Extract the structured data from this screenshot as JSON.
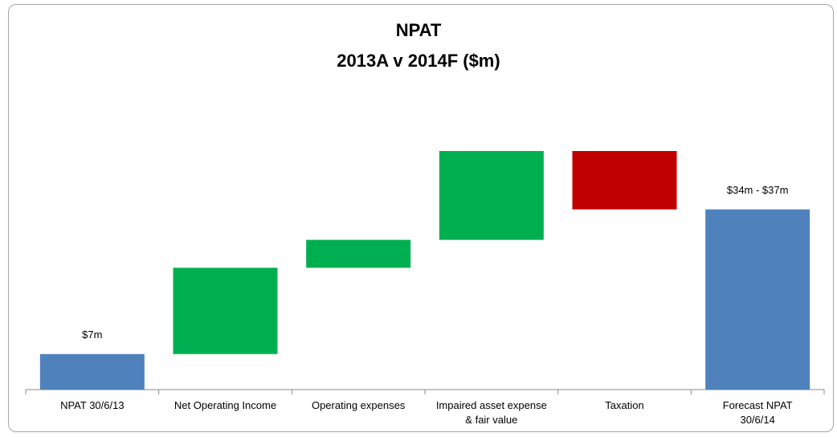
{
  "chart_data": {
    "type": "waterfall",
    "title": "NPAT",
    "subtitle": "2013A v 2014F ($m)",
    "categories": [
      "NPAT 30/6/13",
      "Net Operating Income",
      "Operating expenses",
      "Impaired asset expense\n& fair value",
      "Taxation",
      "Forecast NPAT\n30/6/14"
    ],
    "values": [
      7,
      17,
      5.5,
      17.5,
      -11.5,
      35.5
    ],
    "value_labels": [
      "$7m",
      null,
      null,
      null,
      null,
      "$34m - $37m"
    ],
    "is_total": [
      true,
      false,
      false,
      false,
      false,
      true
    ],
    "total_color": "#4f81bd",
    "increase_color": "#00b050",
    "decrease_color": "#c00000"
  }
}
